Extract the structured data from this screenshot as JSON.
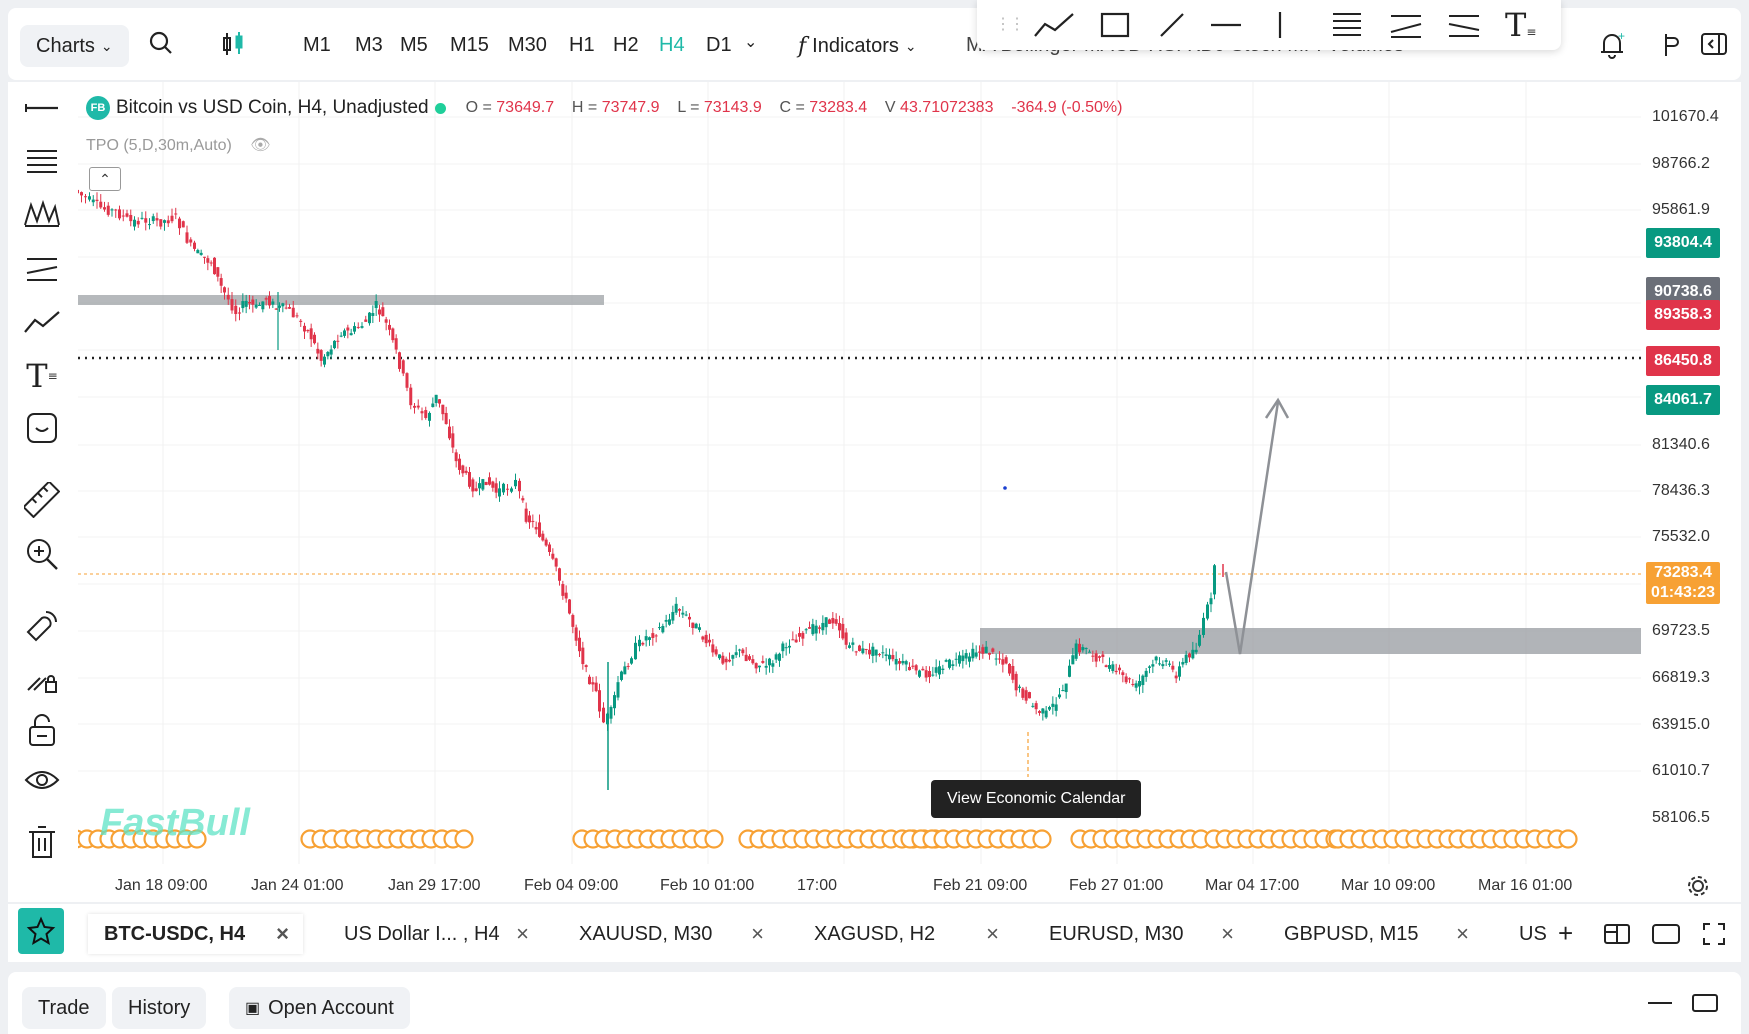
{
  "topbar": {
    "charts_label": "Charts",
    "timeframes": [
      "M1",
      "M3",
      "M5",
      "M15",
      "M30",
      "H1",
      "H2",
      "H4",
      "D1"
    ],
    "active_timeframe": "H4",
    "indicators_label": "Indicators",
    "overflow_text": "MA Bollinger MACD RSI KDJ Stoch MFI Volumes"
  },
  "legend": {
    "badge": "FB",
    "symbol_title": "Bitcoin vs USD Coin, H4, Unadjusted",
    "o_label": "O =",
    "o": "73649.7",
    "h_label": "H =",
    "h": "73747.9",
    "l_label": "L =",
    "l": "73143.9",
    "c_label": "C =",
    "c": "73283.4",
    "v_label": "V",
    "v": "43.71072383",
    "change": "-364.9 (-0.50%)",
    "indicator": "TPO (5,D,30m,Auto)"
  },
  "price_axis": {
    "labels": [
      "101670.4",
      "98766.2",
      "95861.9",
      "81340.6",
      "78436.3",
      "75532.0",
      "69723.5",
      "66819.3",
      "63915.0",
      "61010.7",
      "58106.5"
    ],
    "tags": [
      {
        "text": "93804.4",
        "color": "#089981"
      },
      {
        "text": "90738.6",
        "color": "#6b6f78"
      },
      {
        "text": "89358.3",
        "color": "#e0344a"
      },
      {
        "text": "86450.8",
        "color": "#e0344a"
      },
      {
        "text": "84061.7",
        "color": "#089981"
      },
      {
        "text": "73283.4",
        "color": "#f7a134"
      },
      {
        "text": "01:43:23",
        "color": "#f7a134"
      }
    ]
  },
  "time_axis": [
    "Jan 18 09:00",
    "Jan 24 01:00",
    "Jan 29 17:00",
    "Feb 04 09:00",
    "Feb 10 01:00",
    "17:00",
    "Feb 21 09:00",
    "Feb 27 01:00",
    "Mar 04 17:00",
    "Mar 10 09:00",
    "Mar 16 01:00"
  ],
  "tooltip": "View Economic Calendar",
  "watermark": "FastBull",
  "tabs": [
    "BTC-USDC, H4",
    "US Dollar I... , H4",
    "XAUUSD, M30",
    "XAGUSD, H2",
    "EURUSD, M30",
    "GBPUSD, M15",
    "US"
  ],
  "bottom": {
    "trade": "Trade",
    "history": "History",
    "open_account": "Open Account"
  },
  "colors": {
    "accent": "#1fb9a8",
    "up": "#089981",
    "down": "#e0344a",
    "zone": "#9ea1a6"
  }
}
